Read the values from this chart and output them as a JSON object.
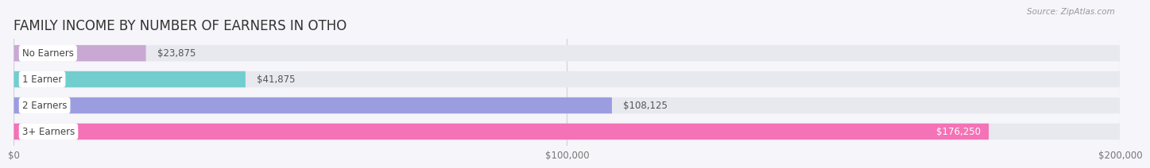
{
  "title": "FAMILY INCOME BY NUMBER OF EARNERS IN OTHO",
  "source": "Source: ZipAtlas.com",
  "categories": [
    "No Earners",
    "1 Earner",
    "2 Earners",
    "3+ Earners"
  ],
  "values": [
    23875,
    41875,
    108125,
    176250
  ],
  "value_labels": [
    "$23,875",
    "$41,875",
    "$108,125",
    "$176,250"
  ],
  "bar_colors": [
    "#c9a8d4",
    "#72cece",
    "#9b9de0",
    "#f472b6"
  ],
  "track_color": "#e8e8ef",
  "background_color": "#ffffff",
  "fig_background": "#f5f5fa",
  "xlim": [
    0,
    200000
  ],
  "xtick_vals": [
    0,
    100000,
    200000
  ],
  "xtick_labels": [
    "$0",
    "$100,000",
    "$200,000"
  ],
  "title_fontsize": 12,
  "label_fontsize": 8.5,
  "value_fontsize": 8.5,
  "bar_height": 0.62
}
